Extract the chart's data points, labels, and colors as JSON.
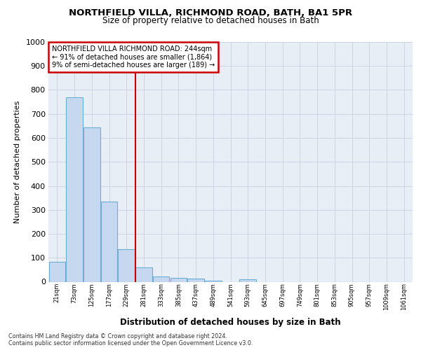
{
  "title1": "NORTHFIELD VILLA, RICHMOND ROAD, BATH, BA1 5PR",
  "title2": "Size of property relative to detached houses in Bath",
  "xlabel": "Distribution of detached houses by size in Bath",
  "ylabel": "Number of detached properties",
  "categories": [
    "21sqm",
    "73sqm",
    "125sqm",
    "177sqm",
    "229sqm",
    "281sqm",
    "333sqm",
    "385sqm",
    "437sqm",
    "489sqm",
    "541sqm",
    "593sqm",
    "645sqm",
    "697sqm",
    "749sqm",
    "801sqm",
    "853sqm",
    "905sqm",
    "957sqm",
    "1009sqm",
    "1061sqm"
  ],
  "values": [
    83,
    770,
    645,
    335,
    135,
    60,
    23,
    15,
    13,
    5,
    0,
    10,
    0,
    0,
    0,
    0,
    0,
    0,
    0,
    0,
    0
  ],
  "bar_color": "#c5d8f0",
  "bar_edge_color": "#6aaed6",
  "grid_color": "#ccd5e3",
  "vline_color": "#cc0000",
  "annotation_line1": "NORTHFIELD VILLA RICHMOND ROAD: 244sqm",
  "annotation_line2": "← 91% of detached houses are smaller (1,864)",
  "annotation_line3": "9% of semi-detached houses are larger (189) →",
  "annotation_box_color": "#ffffff",
  "annotation_box_edge": "#cc0000",
  "ylim": [
    0,
    1000
  ],
  "yticks": [
    0,
    100,
    200,
    300,
    400,
    500,
    600,
    700,
    800,
    900,
    1000
  ],
  "footnote": "Contains HM Land Registry data © Crown copyright and database right 2024.\nContains public sector information licensed under the Open Government Licence v3.0.",
  "fig_bg_color": "#ffffff",
  "plot_bg_color": "#e8eef5"
}
